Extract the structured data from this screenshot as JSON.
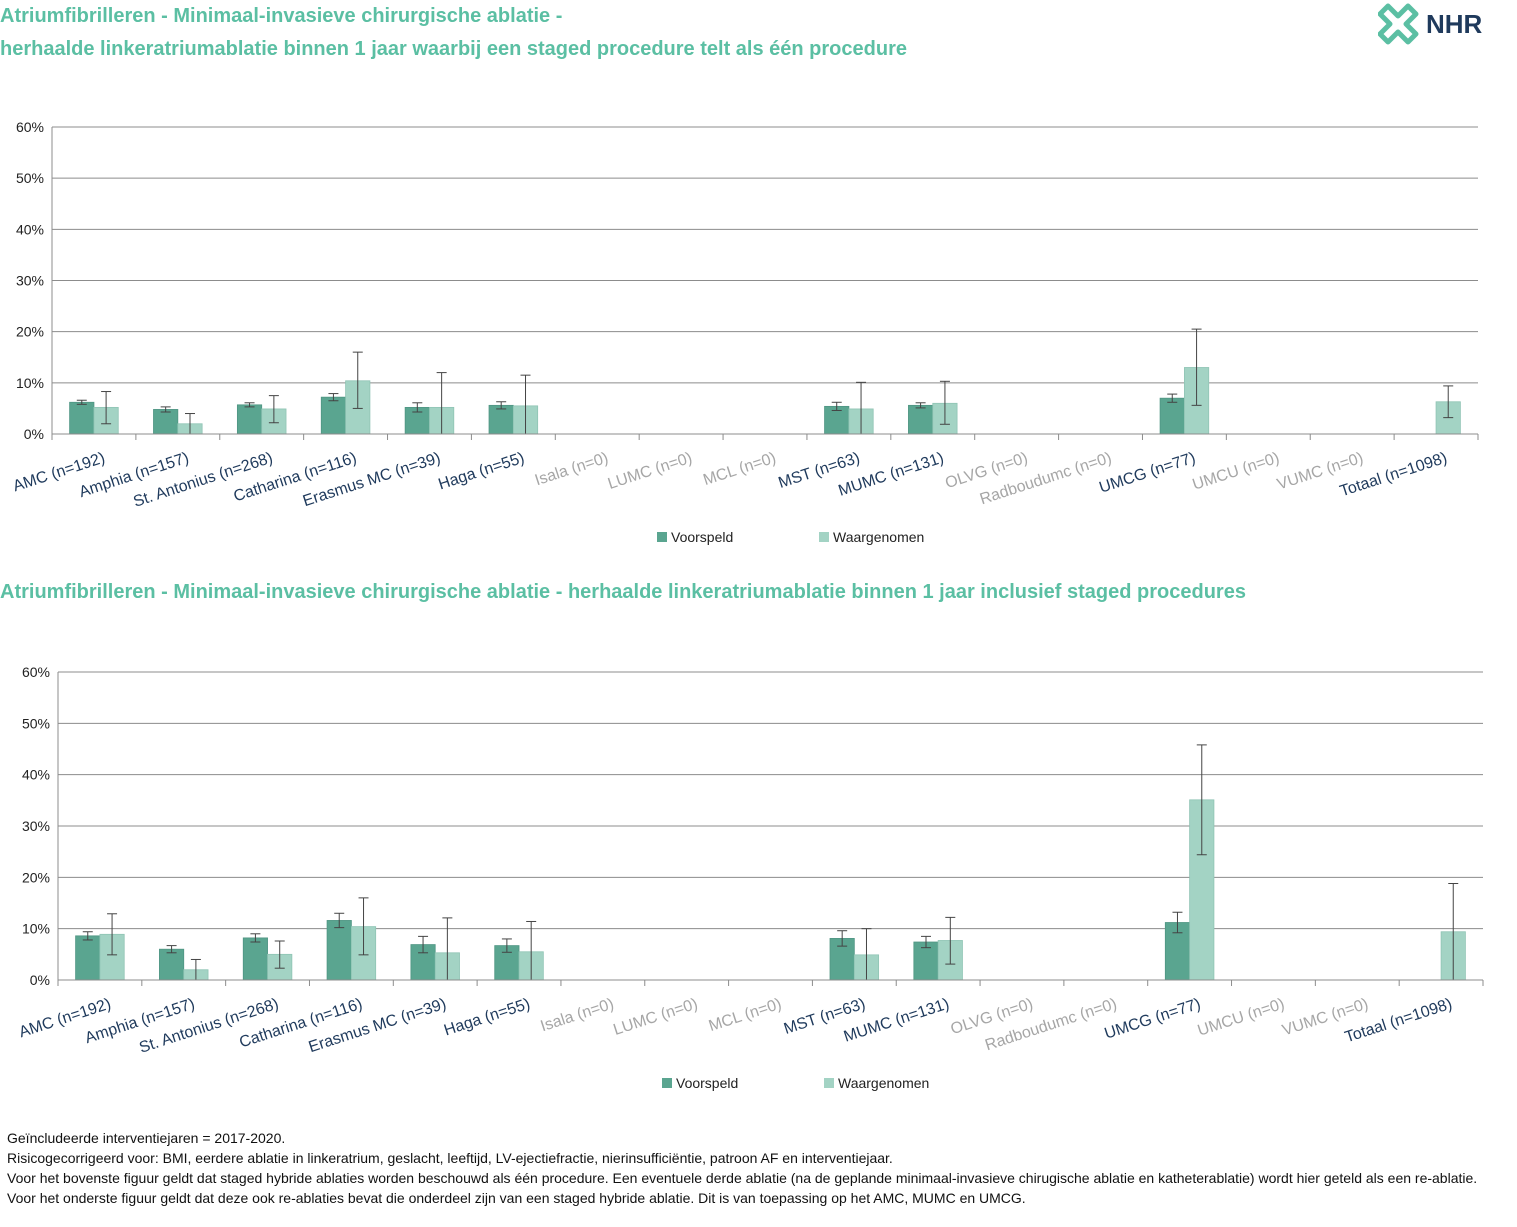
{
  "header": {
    "title1_line1": "Atriumfibrilleren - Minimaal-invasieve chirurgische ablatie -",
    "title1_line2": "herhaalde linkeratriumablatie binnen 1 jaar waarbij een staged procedure telt als één procedure",
    "title2": "Atriumfibrilleren - Minimaal-invasieve chirurgische ablatie - herhaalde linkeratriumablatie binnen 1 jaar inclusief staged procedures",
    "logo_text": "NHR",
    "logo_icon": "nhr-cross-logo-icon"
  },
  "colors": {
    "title": "#5bbfa3",
    "voorspeld": "#5aa590",
    "waargenomen": "#a3d3c4",
    "active_label": "#1f3a5c",
    "inactive_label": "#a6a6a6",
    "grid": "#8c8c8c"
  },
  "chart_data": [
    {
      "type": "bar",
      "categories": [
        "AMC (n=192)",
        "Amphia (n=157)",
        "St. Antonius (n=268)",
        "Catharina (n=116)",
        "Erasmus MC (n=39)",
        "Haga (n=55)",
        "Isala (n=0)",
        "LUMC (n=0)",
        "MCL (n=0)",
        "MST (n=63)",
        "MUMC (n=131)",
        "OLVG (n=0)",
        "Radboudumc (n=0)",
        "UMCG (n=77)",
        "UMCU (n=0)",
        "VUMC (n=0)",
        "Totaal (n=1098)"
      ],
      "active": [
        true,
        true,
        true,
        true,
        true,
        true,
        false,
        false,
        false,
        true,
        true,
        false,
        false,
        true,
        false,
        false,
        true
      ],
      "ylim": [
        0,
        60
      ],
      "yticks": [
        "0%",
        "10%",
        "20%",
        "30%",
        "40%",
        "50%",
        "60%"
      ],
      "grid": true,
      "legend_position": "bottom",
      "series": [
        {
          "name": "Voorspeld",
          "values": [
            6.2,
            4.8,
            5.7,
            7.2,
            5.2,
            5.6,
            null,
            null,
            null,
            5.4,
            5.6,
            null,
            null,
            7.0,
            null,
            null,
            null
          ],
          "err_low": [
            5.8,
            4.3,
            5.3,
            6.5,
            4.3,
            4.9,
            null,
            null,
            null,
            4.6,
            5.1,
            null,
            null,
            6.2,
            null,
            null,
            null
          ],
          "err_high": [
            6.6,
            5.3,
            6.1,
            7.9,
            6.1,
            6.3,
            null,
            null,
            null,
            6.2,
            6.1,
            null,
            null,
            7.8,
            null,
            null,
            null
          ]
        },
        {
          "name": "Waargenomen",
          "values": [
            5.2,
            2.0,
            4.9,
            10.4,
            5.2,
            5.5,
            null,
            null,
            null,
            4.9,
            6.0,
            null,
            null,
            13.0,
            null,
            null,
            6.3
          ],
          "err_low": [
            2.0,
            0.0,
            2.2,
            5.0,
            0.0,
            0.0,
            null,
            null,
            null,
            0.0,
            1.9,
            null,
            null,
            5.6,
            null,
            null,
            3.2
          ],
          "err_high": [
            8.3,
            4.0,
            7.5,
            16.0,
            12.0,
            11.5,
            null,
            null,
            null,
            10.1,
            10.3,
            null,
            null,
            20.5,
            null,
            null,
            9.4
          ]
        }
      ]
    },
    {
      "type": "bar",
      "categories": [
        "AMC (n=192)",
        "Amphia (n=157)",
        "St. Antonius (n=268)",
        "Catharina (n=116)",
        "Erasmus MC (n=39)",
        "Haga (n=55)",
        "Isala (n=0)",
        "LUMC (n=0)",
        "MCL (n=0)",
        "MST (n=63)",
        "MUMC (n=131)",
        "OLVG (n=0)",
        "Radboudumc (n=0)",
        "UMCG (n=77)",
        "UMCU (n=0)",
        "VUMC (n=0)",
        "Totaal (n=1098)"
      ],
      "active": [
        true,
        true,
        true,
        true,
        true,
        true,
        false,
        false,
        false,
        true,
        true,
        false,
        false,
        true,
        false,
        false,
        true
      ],
      "ylim": [
        0,
        60
      ],
      "yticks": [
        "0%",
        "10%",
        "20%",
        "30%",
        "40%",
        "50%",
        "60%"
      ],
      "grid": true,
      "legend_position": "bottom",
      "series": [
        {
          "name": "Voorspeld",
          "values": [
            8.6,
            6.0,
            8.2,
            11.6,
            6.9,
            6.7,
            null,
            null,
            null,
            8.1,
            7.4,
            null,
            null,
            11.2,
            null,
            null,
            null
          ],
          "err_low": [
            7.8,
            5.3,
            7.4,
            10.2,
            5.3,
            5.4,
            null,
            null,
            null,
            6.6,
            6.3,
            null,
            null,
            9.2,
            null,
            null,
            null
          ],
          "err_high": [
            9.4,
            6.7,
            9.0,
            13.0,
            8.5,
            8.0,
            null,
            null,
            null,
            9.6,
            8.5,
            null,
            null,
            13.2,
            null,
            null,
            null
          ]
        },
        {
          "name": "Waargenomen",
          "values": [
            8.9,
            2.0,
            5.0,
            10.4,
            5.3,
            5.5,
            null,
            null,
            null,
            4.9,
            7.7,
            null,
            null,
            35.1,
            null,
            null,
            9.4
          ],
          "err_low": [
            4.9,
            0.0,
            2.3,
            4.9,
            0.0,
            0.0,
            null,
            null,
            null,
            0.0,
            3.1,
            null,
            null,
            24.4,
            null,
            null,
            0.0
          ],
          "err_high": [
            12.9,
            4.0,
            7.6,
            16.0,
            12.1,
            11.4,
            null,
            null,
            null,
            10.0,
            12.2,
            null,
            null,
            45.8,
            null,
            null,
            18.8
          ]
        }
      ]
    }
  ],
  "notes": [
    "Geïncludeerde interventiejaren = 2017-2020.",
    "Risicogecorrigeerd voor: BMI, eerdere ablatie in linkeratrium, geslacht, leeftijd, LV-ejectiefractie, nierinsufficiëntie, patroon AF en interventiejaar.",
    "Voor het bovenste figuur geldt dat staged hybride ablaties worden beschouwd als één procedure. Een eventuele derde ablatie (na de geplande minimaal-invasieve chirugische ablatie en katheterablatie) wordt hier geteld als een re-ablatie.",
    "Voor het onderste figuur geldt dat deze ook re-ablaties bevat die onderdeel zijn van een staged hybride ablatie. Dit is van toepassing op het AMC, MUMC en UMCG."
  ]
}
